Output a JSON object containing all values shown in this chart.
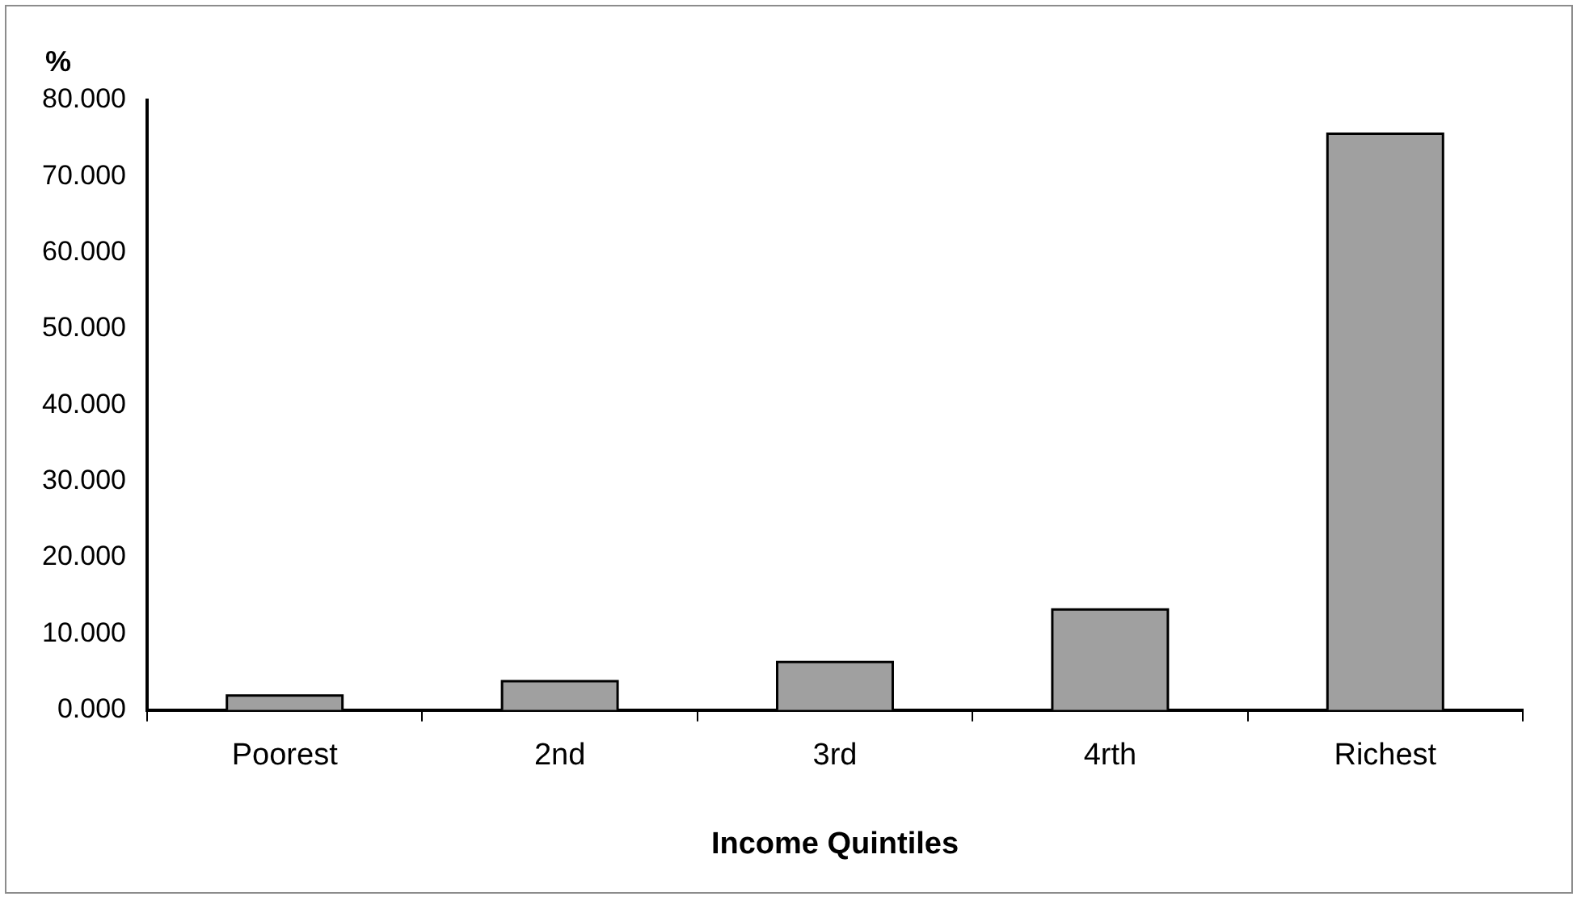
{
  "chart_data": {
    "type": "bar",
    "xlabel": "Income Quintiles",
    "ylabel": "%",
    "categories": [
      "Poorest",
      "2nd",
      "3rd",
      "4rth",
      "Richest"
    ],
    "values": [
      1.9,
      3.8,
      6.3,
      13.2,
      75.6
    ],
    "color": "#a0a0a0",
    "ylim": [
      0,
      80
    ],
    "yticks": [
      {
        "value": 0,
        "label": "0.000"
      },
      {
        "value": 10,
        "label": "10.000"
      },
      {
        "value": 20,
        "label": "20.000"
      },
      {
        "value": 30,
        "label": "30.000"
      },
      {
        "value": 40,
        "label": "40.000"
      },
      {
        "value": 50,
        "label": "50.000"
      },
      {
        "value": 60,
        "label": "60.000"
      },
      {
        "value": 70,
        "label": "70.000"
      },
      {
        "value": 80,
        "label": "80.000"
      }
    ],
    "grid": false,
    "legend": false
  }
}
